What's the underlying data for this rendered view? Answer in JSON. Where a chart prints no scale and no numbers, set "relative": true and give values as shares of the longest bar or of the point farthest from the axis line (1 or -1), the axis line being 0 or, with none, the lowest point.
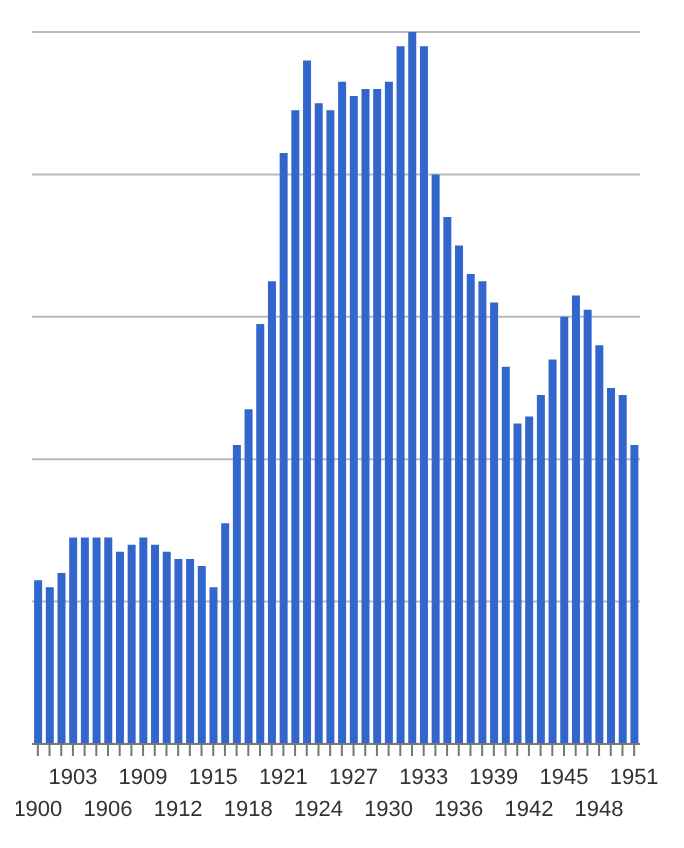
{
  "chart_data": {
    "type": "bar",
    "relative": true,
    "grid": "y",
    "color": "#3366cc",
    "categories": [
      "1900",
      null,
      null,
      "1903",
      null,
      null,
      "1906",
      null,
      null,
      "1909",
      null,
      null,
      "1912",
      null,
      null,
      "1915",
      null,
      null,
      "1918",
      null,
      null,
      "1921",
      null,
      null,
      "1924",
      null,
      null,
      "1927",
      null,
      null,
      "1930",
      null,
      null,
      "1933",
      null,
      null,
      "1936",
      null,
      null,
      "1939",
      null,
      null,
      "1942",
      null,
      null,
      "1945",
      null,
      null,
      "1948",
      null,
      null,
      "1951"
    ],
    "values": [
      0.23,
      0.22,
      0.24,
      0.29,
      0.29,
      0.29,
      0.29,
      0.27,
      0.28,
      0.29,
      0.28,
      0.27,
      0.26,
      0.26,
      0.25,
      0.22,
      0.31,
      0.42,
      0.47,
      0.59,
      0.65,
      0.83,
      0.89,
      0.96,
      0.9,
      0.89,
      0.93,
      0.91,
      0.92,
      0.92,
      0.93,
      0.98,
      1,
      0.98,
      0.8,
      0.74,
      0.7,
      0.66,
      0.65,
      0.62,
      0.53,
      0.45,
      0.46,
      0.49,
      0.54,
      0.6,
      0.63,
      0.61,
      0.56,
      0.5,
      0.49,
      0.42
    ]
  }
}
